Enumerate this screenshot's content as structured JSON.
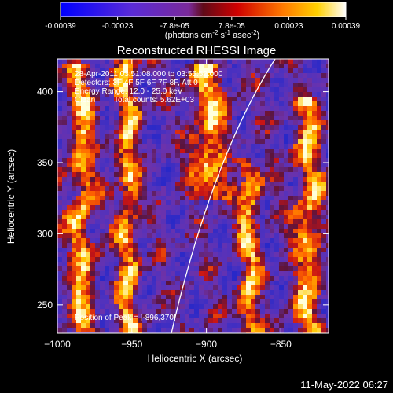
{
  "colorbar": {
    "ticks": [
      "-0.00039",
      "-0.00023",
      "-7.8e-05",
      "7.8e-05",
      "0.00023",
      "0.00039"
    ],
    "unit_parts": [
      "(photons cm",
      "-2",
      " s",
      "-1",
      " asec",
      "-2",
      ")"
    ]
  },
  "chart_data": {
    "type": "heatmap",
    "title": "Reconstructed RHESSI Image",
    "xlabel": "Heliocentric X (arcsec)",
    "ylabel": "Heliocentric Y (arcsec)",
    "xlim": [
      -1000,
      -818
    ],
    "ylim": [
      230,
      423
    ],
    "xticks": [
      -1000,
      -950,
      -900,
      -850
    ],
    "yticks": [
      250,
      300,
      350,
      400
    ],
    "colormap": "blue-purple-red-orange-yellow-white",
    "value_range": [
      -0.00039,
      0.00039
    ],
    "limb_visible": true,
    "annotations": {
      "time_range": "28-Apr-2011 03:51:08.000 to 03:55:52.000",
      "detectors": "Detectors: 3F 4F 5F 6F 7F 8F, Att 0",
      "energy": "Energy Range: 12.0 - 25.0 keV",
      "method": "Clean",
      "counts": "Total counts: 5.62E+03",
      "peak": "Position of Peak = [-896,370]"
    }
  },
  "footer": {
    "date": "11-May-2022 06:27"
  }
}
